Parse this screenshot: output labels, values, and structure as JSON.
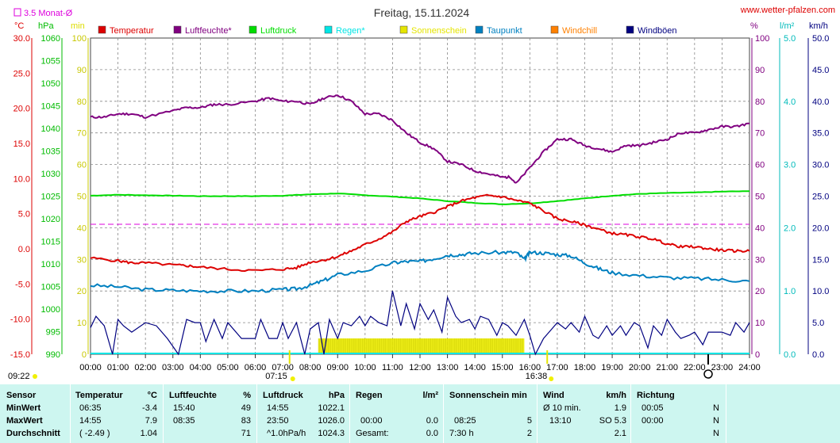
{
  "title": "Freitag, 15.11.2024",
  "site": "www.wetter-pfalzen.com",
  "monat_label": "3.5 Monat-Ø",
  "units": {
    "temp": "°C",
    "press": "hPa",
    "min": "min",
    "pct": "%",
    "rain": "l/m²",
    "wind": "km/h"
  },
  "legend": [
    {
      "label": "Temperatur",
      "color": "#dd0000"
    },
    {
      "label": "Luftfeuchte*",
      "color": "#800080"
    },
    {
      "label": "Luftdruck",
      "color": "#00dd00"
    },
    {
      "label": "Regen*",
      "color": "#00e5e5"
    },
    {
      "label": "Sonnenschein",
      "color": "#e5e500"
    },
    {
      "label": "Taupunkt",
      "color": "#0080c0"
    },
    {
      "label": "Windchill",
      "color": "#ff8000"
    },
    {
      "label": "Windböen",
      "color": "#000080"
    }
  ],
  "axes": {
    "temp_ticks": [
      "30.0",
      "25.0",
      "20.0",
      "15.0",
      "10.0",
      "5.0",
      "0.0",
      "-5.0",
      "-10.0",
      "-15.0"
    ],
    "press_ticks": [
      "1060",
      "1055",
      "1050",
      "1045",
      "1040",
      "1035",
      "1030",
      "1025",
      "1020",
      "1015",
      "1010",
      "1005",
      "1000",
      "995",
      "990"
    ],
    "min_ticks": [
      "100",
      "90",
      "80",
      "70",
      "60",
      "50",
      "40",
      "30",
      "20",
      "10",
      "0"
    ],
    "pct_ticks": [
      "100",
      "90",
      "80",
      "70",
      "60",
      "50",
      "40",
      "30",
      "20",
      "10",
      "0"
    ],
    "rain_ticks": [
      "5.0",
      "4.0",
      "3.0",
      "2.0",
      "1.0",
      "0.0"
    ],
    "wind_ticks": [
      "50.0",
      "45.0",
      "40.0",
      "35.0",
      "30.0",
      "25.0",
      "20.0",
      "15.0",
      "10.0",
      "5.0",
      "0.0"
    ],
    "x_ticks": [
      "00:00",
      "01:00",
      "02:00",
      "03:00",
      "04:00",
      "05:00",
      "06:00",
      "07:00",
      "08:00",
      "09:00",
      "10:00",
      "11:00",
      "12:00",
      "13:00",
      "14:00",
      "15:00",
      "16:00",
      "17:00",
      "18:00",
      "19:00",
      "20:00",
      "21:00",
      "22:00",
      "23:00",
      "24:00"
    ]
  },
  "markers": {
    "sunrise": "07:15",
    "sunset": "16:38",
    "moonrise": "09:22"
  },
  "chart_data": {
    "type": "line",
    "title": "Freitag, 15.11.2024",
    "x_unit": "hours",
    "xlim": [
      0,
      24
    ],
    "monthly_avg_temp": 3.5,
    "series": [
      {
        "name": "Temperatur",
        "unit": "°C",
        "x": [
          0,
          1,
          1.5,
          2,
          3,
          3.5,
          4,
          5,
          6,
          7,
          7.5,
          8,
          8.5,
          9,
          9.5,
          10,
          10.5,
          11,
          11.5,
          12,
          12.5,
          13,
          13.5,
          14,
          14.5,
          15,
          15.5,
          16,
          16.5,
          17,
          17.5,
          18,
          18.5,
          19,
          19.5,
          20,
          20.5,
          21,
          21.5,
          22,
          22.5,
          23,
          23.5,
          24
        ],
        "y": [
          -1.3,
          -1.7,
          -2.0,
          -2.0,
          -2.3,
          -2.4,
          -2.6,
          -2.9,
          -3.1,
          -2.9,
          -2.7,
          -1.9,
          -1.6,
          -1.1,
          -0.3,
          0.6,
          1.4,
          2.4,
          3.9,
          4.6,
          5.2,
          6.0,
          6.8,
          7.3,
          7.6,
          7.4,
          6.9,
          6.5,
          5.4,
          4.3,
          3.9,
          3.4,
          2.8,
          2.2,
          2.0,
          1.7,
          1.4,
          0.7,
          0.3,
          0.3,
          0.0,
          -0.2,
          -0.3,
          -0.3
        ]
      },
      {
        "name": "Luftfeuchte*",
        "unit": "%",
        "x": [
          0,
          0.5,
          1,
          1.5,
          2,
          3,
          3.5,
          4,
          4.5,
          5,
          6,
          6.5,
          7,
          7.5,
          8,
          8.5,
          9,
          9.5,
          10,
          10.5,
          11,
          11.5,
          12,
          12.5,
          13,
          13.5,
          14,
          14.5,
          15,
          15.3,
          15.5,
          16,
          16.5,
          17,
          17.5,
          18,
          18.5,
          19,
          19.5,
          20,
          20.5,
          21,
          21.5,
          22,
          22.5,
          23,
          23.5,
          24
        ],
        "y": [
          75,
          75,
          76,
          76,
          75,
          77,
          78,
          78,
          79,
          79,
          80,
          81,
          80,
          80,
          79,
          81,
          82,
          80,
          76,
          76,
          74,
          70,
          67,
          65,
          61,
          60,
          58,
          57,
          56,
          56,
          54,
          59,
          64,
          68,
          68,
          66,
          65,
          64,
          66,
          66,
          67,
          68,
          70,
          70,
          71,
          72,
          72,
          73
        ]
      },
      {
        "name": "Luftdruck",
        "unit": "hPa",
        "x": [
          0,
          1,
          2,
          3,
          4,
          5,
          6,
          7,
          8,
          9,
          10,
          11,
          12,
          13,
          14,
          15,
          16,
          17,
          18,
          19,
          20,
          21,
          22,
          23,
          24
        ],
        "y": [
          1025.1,
          1025.3,
          1025.2,
          1025.1,
          1025.0,
          1025.0,
          1025.0,
          1025.1,
          1025.4,
          1025.6,
          1025.2,
          1024.9,
          1024.5,
          1023.9,
          1023.5,
          1023.2,
          1023.4,
          1023.9,
          1024.5,
          1025.1,
          1025.5,
          1025.7,
          1025.8,
          1026.0,
          1026.1
        ]
      },
      {
        "name": "Taupunkt",
        "unit": "°C",
        "x": [
          0,
          1,
          2,
          3,
          4,
          5,
          6,
          7,
          7.5,
          8,
          8.5,
          9,
          10,
          11,
          11.5,
          12,
          12.5,
          13,
          13.5,
          14,
          15,
          15.5,
          15.8,
          16,
          16.5,
          17,
          17.5,
          18,
          18.5,
          19,
          20,
          21,
          22,
          23,
          24
        ],
        "y": [
          -5.2,
          -5.4,
          -5.8,
          -5.9,
          -6.0,
          -6.0,
          -6.0,
          -5.8,
          -5.7,
          -5.2,
          -4.5,
          -3.7,
          -3.1,
          -2.0,
          -1.8,
          -1.8,
          -1.4,
          -0.9,
          -0.8,
          -0.6,
          -0.5,
          -0.5,
          -1.5,
          -0.5,
          -0.6,
          -0.8,
          -1.0,
          -2.0,
          -2.8,
          -3.4,
          -3.8,
          -4.1,
          -4.2,
          -4.4,
          -4.6
        ]
      },
      {
        "name": "Windböen",
        "unit": "km/h",
        "x": [
          0,
          0.2,
          0.5,
          0.8,
          1,
          1.2,
          1.5,
          2,
          2.4,
          2.8,
          3.2,
          3.5,
          3.8,
          4,
          4.2,
          4.5,
          4.8,
          5,
          5.5,
          6,
          6.2,
          6.5,
          6.8,
          7,
          7.2,
          7.5,
          7.8,
          8,
          8.3,
          8.5,
          8.7,
          9,
          9.2,
          9.5,
          9.8,
          10,
          10.2,
          10.5,
          10.8,
          11,
          11.3,
          11.5,
          11.8,
          12,
          12.3,
          12.5,
          12.8,
          13,
          13.3,
          13.5,
          13.8,
          14,
          14.2,
          14.5,
          14.8,
          15,
          15.2,
          15.5,
          15.8,
          16,
          16.2,
          16.5,
          16.8,
          17,
          17.3,
          17.5,
          17.8,
          18,
          18.3,
          18.5,
          18.8,
          19,
          19.3,
          19.5,
          19.8,
          20,
          20.3,
          20.5,
          20.8,
          21,
          21.3,
          21.5,
          21.8,
          22,
          22.3,
          22.5,
          22.8,
          23,
          23.3,
          23.5,
          23.8,
          24
        ],
        "y": [
          4.2,
          6,
          4.5,
          0,
          5.5,
          4.5,
          3.5,
          5,
          4.5,
          2.5,
          0,
          5.5,
          5,
          5,
          2,
          5.5,
          2.5,
          5,
          2.5,
          2.5,
          5.5,
          2.5,
          2.5,
          5,
          2.5,
          5,
          0,
          4,
          5,
          0,
          5.5,
          2.5,
          5,
          4.5,
          6,
          4.5,
          6,
          5,
          4.5,
          10,
          4.5,
          8,
          4,
          8,
          5.5,
          7,
          3.5,
          9,
          6,
          5,
          5.5,
          4,
          6,
          5.5,
          3,
          5,
          4.5,
          3,
          5.5,
          3,
          0,
          2.5,
          4,
          5,
          4,
          5,
          3.5,
          6,
          3,
          2.5,
          4.5,
          3,
          4.5,
          3,
          5,
          4.5,
          1,
          4.5,
          3,
          5.5,
          3.5,
          2.5,
          3,
          3.5,
          1.5,
          3.5,
          3.5,
          3.5,
          3,
          5,
          3.5,
          5
        ]
      }
    ],
    "sunshine": [
      {
        "from": 8.3,
        "to": 15.8,
        "value_min": 10
      }
    ]
  },
  "table": {
    "headers": {
      "sensor": "Sensor",
      "temp": "Temperatur",
      "temp_unit": "°C",
      "hum": "Luftfeuchte",
      "hum_unit": "%",
      "press": "Luftdruck",
      "press_unit": "hPa",
      "rain": "Regen",
      "rain_unit": "l/m²",
      "sun": "Sonnenschein min",
      "wind": "Wind",
      "wind_unit": "km/h",
      "dir": "Richtung"
    },
    "rows": [
      {
        "label": "MinWert",
        "temp_t": "06:35",
        "temp_v": "-3.4",
        "hum_t": "15:40",
        "hum_v": "49",
        "press_t": "14:55",
        "press_v": "1022.1",
        "rain_t": "",
        "rain_v": "",
        "sun_t": "",
        "sun_v": "",
        "wind_t": "Ø 10 min.",
        "wind_v": "1.9",
        "dir_t": "00:05",
        "dir_v": "N"
      },
      {
        "label": "MaxWert",
        "temp_t": "14:55",
        "temp_v": "7.9",
        "hum_t": "08:35",
        "hum_v": "83",
        "press_t": "23:50",
        "press_v": "1026.0",
        "rain_t": "00:00",
        "rain_v": "0.0",
        "sun_t": "08:25",
        "sun_v": "5",
        "wind_t": "13:10",
        "wind_v": "SO 5.3",
        "dir_t": "00:00",
        "dir_v": "N"
      },
      {
        "label": "Durchschnitt",
        "temp_t": "( -2.49 )",
        "temp_v": "1.04",
        "hum_t": "",
        "hum_v": "71",
        "press_t": "^1.0hPa/h",
        "press_v": "1024.3",
        "rain_t": "Gesamt:",
        "rain_v": "0.0",
        "sun_t": "7:30 h",
        "sun_v": "2",
        "wind_t": "",
        "wind_v": "2.1",
        "dir_t": "",
        "dir_v": "N"
      }
    ]
  }
}
